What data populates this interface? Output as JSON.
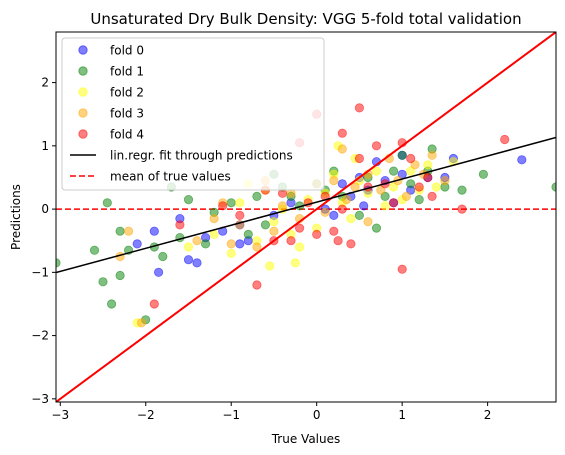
{
  "chart_data": {
    "type": "scatter",
    "title": "Unsaturated Dry Bulk Density: VGG 5-fold total validation",
    "xlabel": "True Values",
    "ylabel": "Predictions",
    "xlim": [
      -3.05,
      2.8
    ],
    "ylim": [
      -3.05,
      2.8
    ],
    "xticks": [
      -3,
      -2,
      -1,
      0,
      1,
      2
    ],
    "yticks": [
      -3,
      -2,
      -1,
      0,
      1,
      2
    ],
    "tick_labels": [
      "−3",
      "−2",
      "−1",
      "0",
      "1",
      "2"
    ],
    "grid": false,
    "legend_position": "top-left",
    "legend": [
      "fold 0",
      "fold 1",
      "fold 2",
      "fold 3",
      "fold 4",
      "lin.regr. fit through predictions",
      "mean of true values"
    ],
    "series": [
      {
        "name": "fold 0",
        "color": "#0000ff",
        "points": [
          [
            -1.9,
            -0.35
          ],
          [
            -1.6,
            -0.15
          ],
          [
            -1.5,
            -0.8
          ],
          [
            -1.4,
            -0.85
          ],
          [
            -1.3,
            -0.45
          ],
          [
            -1.1,
            -0.35
          ],
          [
            -0.9,
            -0.25
          ],
          [
            -0.8,
            -0.5
          ],
          [
            -0.5,
            -0.1
          ],
          [
            -0.3,
            0.1
          ],
          [
            0.1,
            0.0
          ],
          [
            0.3,
            0.4
          ],
          [
            0.4,
            0.2
          ],
          [
            0.5,
            0.5
          ],
          [
            0.6,
            0.3
          ],
          [
            0.7,
            0.75
          ],
          [
            0.8,
            0.45
          ],
          [
            0.9,
            0.1
          ],
          [
            1.0,
            0.55
          ],
          [
            1.1,
            0.3
          ],
          [
            1.3,
            0.5
          ],
          [
            1.5,
            0.5
          ],
          [
            1.6,
            0.8
          ],
          [
            2.4,
            0.78
          ],
          [
            -0.9,
            -0.55
          ],
          [
            0.2,
            -0.1
          ],
          [
            0.55,
            0.05
          ],
          [
            1.0,
            0.85
          ],
          [
            -1.85,
            -1.0
          ],
          [
            -2.1,
            -0.55
          ]
        ]
      },
      {
        "name": "fold 1",
        "color": "#008000",
        "points": [
          [
            -3.05,
            -0.85
          ],
          [
            -2.6,
            -0.65
          ],
          [
            -2.5,
            -1.15
          ],
          [
            -2.45,
            0.1
          ],
          [
            -2.4,
            -1.5
          ],
          [
            -2.3,
            -0.35
          ],
          [
            -2.2,
            -0.65
          ],
          [
            -2.0,
            -1.75
          ],
          [
            -1.9,
            -0.6
          ],
          [
            -1.8,
            -0.75
          ],
          [
            -1.7,
            0.35
          ],
          [
            -1.6,
            -0.45
          ],
          [
            -1.5,
            0.15
          ],
          [
            -1.3,
            -0.55
          ],
          [
            -1.2,
            -0.05
          ],
          [
            -1.0,
            0.1
          ],
          [
            -0.8,
            -0.4
          ],
          [
            -0.7,
            0.2
          ],
          [
            -0.6,
            -0.25
          ],
          [
            -0.5,
            0.55
          ],
          [
            -0.4,
            0.35
          ],
          [
            -0.3,
            0.2
          ],
          [
            -0.2,
            0.05
          ],
          [
            0.1,
            0.3
          ],
          [
            0.2,
            0.6
          ],
          [
            0.3,
            0.2
          ],
          [
            0.5,
            -0.1
          ],
          [
            0.6,
            0.5
          ],
          [
            0.7,
            -0.3
          ],
          [
            0.8,
            0.2
          ],
          [
            0.9,
            0.6
          ],
          [
            1.0,
            0.85
          ],
          [
            1.1,
            0.4
          ],
          [
            1.2,
            0.15
          ],
          [
            1.3,
            0.6
          ],
          [
            1.5,
            0.35
          ],
          [
            1.7,
            0.3
          ],
          [
            1.95,
            0.55
          ],
          [
            2.8,
            0.35
          ],
          [
            1.35,
            0.95
          ],
          [
            -2.3,
            -1.05
          ],
          [
            0.0,
            0.4
          ]
        ]
      },
      {
        "name": "fold 2",
        "color": "#ffff00",
        "points": [
          [
            -2.1,
            -1.8
          ],
          [
            -1.5,
            -0.6
          ],
          [
            -1.2,
            -0.4
          ],
          [
            -1.0,
            -0.7
          ],
          [
            -0.9,
            0.1
          ],
          [
            -0.7,
            -0.5
          ],
          [
            -0.6,
            0.3
          ],
          [
            -0.5,
            -0.2
          ],
          [
            -0.4,
            0.0
          ],
          [
            -0.3,
            -0.4
          ],
          [
            -0.2,
            -0.6
          ],
          [
            -0.1,
            0.15
          ],
          [
            0.0,
            -0.3
          ],
          [
            0.1,
            0.25
          ],
          [
            0.2,
            0.55
          ],
          [
            0.3,
            0.1
          ],
          [
            0.4,
            -0.15
          ],
          [
            0.5,
            0.45
          ],
          [
            0.6,
            0.25
          ],
          [
            0.7,
            0.6
          ],
          [
            0.8,
            0.05
          ],
          [
            0.9,
            0.35
          ],
          [
            1.0,
            0.15
          ],
          [
            1.1,
            0.6
          ],
          [
            1.2,
            0.3
          ],
          [
            1.3,
            0.7
          ],
          [
            1.4,
            0.35
          ],
          [
            -0.25,
            -0.85
          ],
          [
            -0.55,
            -0.9
          ],
          [
            0.25,
            1.0
          ],
          [
            0.45,
            0.8
          ],
          [
            -0.8,
            0.4
          ],
          [
            1.6,
            0.75
          ]
        ]
      },
      {
        "name": "fold 3",
        "color": "#ffa500",
        "points": [
          [
            -2.3,
            -0.75
          ],
          [
            -2.2,
            -0.35
          ],
          [
            -2.05,
            -1.8
          ],
          [
            -1.4,
            -0.5
          ],
          [
            -1.2,
            -0.15
          ],
          [
            -1.1,
            0.1
          ],
          [
            -0.9,
            -0.25
          ],
          [
            -0.7,
            -0.6
          ],
          [
            -0.5,
            -0.35
          ],
          [
            -0.4,
            0.05
          ],
          [
            -0.3,
            0.25
          ],
          [
            -0.2,
            -0.15
          ],
          [
            0.0,
            0.4
          ],
          [
            0.1,
            -0.05
          ],
          [
            0.2,
            0.45
          ],
          [
            0.35,
            0.15
          ],
          [
            0.45,
            0.35
          ],
          [
            0.6,
            0.55
          ],
          [
            0.75,
            0.3
          ],
          [
            0.85,
            0.8
          ],
          [
            0.95,
            0.45
          ],
          [
            1.05,
            0.2
          ],
          [
            1.15,
            0.7
          ],
          [
            1.25,
            0.55
          ],
          [
            1.35,
            0.85
          ],
          [
            0.6,
            -0.2
          ],
          [
            -0.6,
            0.45
          ],
          [
            0.3,
            0.95
          ],
          [
            1.5,
            0.45
          ],
          [
            -1.0,
            -0.55
          ]
        ]
      },
      {
        "name": "fold 4",
        "color": "#ff0000",
        "points": [
          [
            -1.9,
            -1.5
          ],
          [
            -1.6,
            -0.25
          ],
          [
            -1.1,
            0.05
          ],
          [
            -0.9,
            -0.1
          ],
          [
            -0.7,
            -1.2
          ],
          [
            -0.6,
            0.3
          ],
          [
            -0.5,
            -0.5
          ],
          [
            -0.4,
            0.25
          ],
          [
            -0.2,
            -0.3
          ],
          [
            -0.1,
            0.1
          ],
          [
            0.0,
            -0.4
          ],
          [
            0.1,
            0.2
          ],
          [
            0.2,
            -0.35
          ],
          [
            0.3,
            0.0
          ],
          [
            0.3,
            1.2
          ],
          [
            0.4,
            -0.55
          ],
          [
            0.5,
            0.8
          ],
          [
            0.5,
            1.6
          ],
          [
            0.6,
            0.35
          ],
          [
            0.7,
            1.0
          ],
          [
            0.8,
            0.4
          ],
          [
            0.9,
            0.1
          ],
          [
            1.0,
            1.05
          ],
          [
            1.0,
            -0.95
          ],
          [
            1.1,
            0.8
          ],
          [
            1.2,
            0.35
          ],
          [
            1.3,
            0.5
          ],
          [
            1.35,
            0.2
          ],
          [
            1.7,
            0.0
          ],
          [
            2.2,
            1.1
          ],
          [
            -0.2,
            1.05
          ],
          [
            0.0,
            1.5
          ],
          [
            -0.3,
            -0.5
          ],
          [
            0.25,
            -0.5
          ]
        ]
      }
    ],
    "fit_line": {
      "name": "lin.regr. fit through predictions",
      "color": "#000000",
      "slope": 0.365,
      "intercept": 0.11
    },
    "identity_line": {
      "color": "#ff0000",
      "slope": 1,
      "intercept": 0
    },
    "mean_line": {
      "name": "mean of true values",
      "color": "#ff0000",
      "y": 0
    }
  }
}
